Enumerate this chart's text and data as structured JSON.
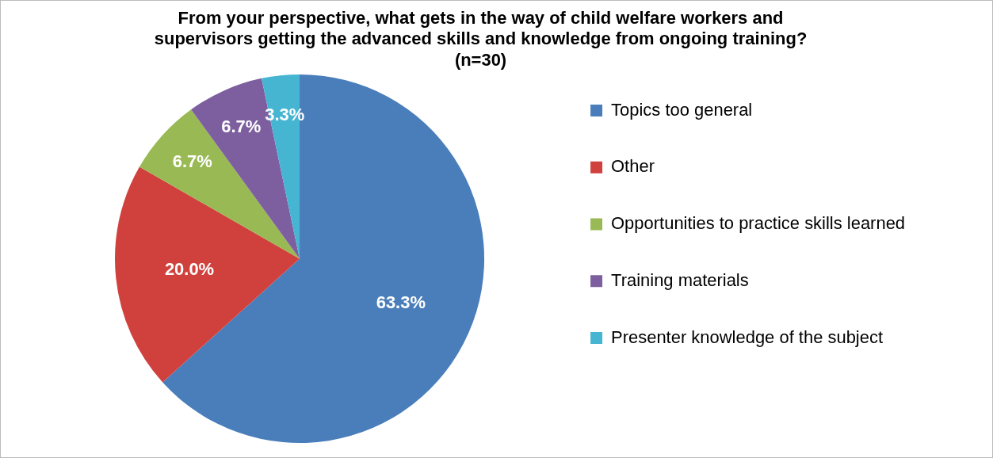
{
  "chart_data": {
    "type": "pie",
    "title": "From your perspective, what gets in the way of child welfare workers and\nsupervisors getting the advanced skills and knowledge from ongoing training?\n(n=30)",
    "categories": [
      "Topics too general",
      "Other",
      "Opportunities to practice skills learned",
      "Training materials",
      "Presenter knowledge of the subject"
    ],
    "values": [
      63.3,
      20.0,
      6.7,
      6.7,
      3.3
    ],
    "value_labels": [
      "63.3%",
      "20.0%",
      "6.7%",
      "6.7%",
      "3.3%"
    ],
    "colors": [
      "#4a7ebb",
      "#d0413d",
      "#98b954",
      "#7d5fa0",
      "#46b5d2"
    ],
    "legend": "right"
  }
}
